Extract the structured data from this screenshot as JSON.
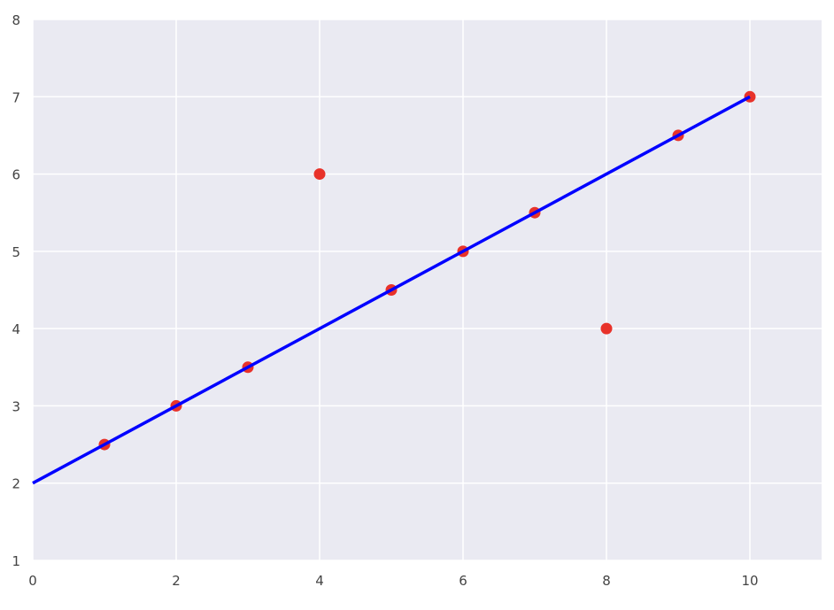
{
  "chart_data": {
    "type": "scatter",
    "title": "",
    "xlabel": "",
    "ylabel": "",
    "xlim": [
      0,
      11
    ],
    "ylim": [
      1,
      8
    ],
    "xticks": [
      "0",
      "2",
      "4",
      "6",
      "8",
      "10"
    ],
    "yticks": [
      "1",
      "2",
      "3",
      "4",
      "5",
      "6",
      "7",
      "8"
    ],
    "grid": true,
    "background_color": "#EAEAF2",
    "points": {
      "color": "#E8322A",
      "x": [
        1,
        2,
        3,
        4,
        5,
        6,
        7,
        8,
        9,
        10
      ],
      "y": [
        2.5,
        3,
        3.5,
        6,
        4.5,
        5,
        5.5,
        4,
        6.5,
        7
      ]
    },
    "line": {
      "color": "#0000FF",
      "x": [
        0,
        10
      ],
      "y": [
        2,
        7
      ]
    }
  }
}
